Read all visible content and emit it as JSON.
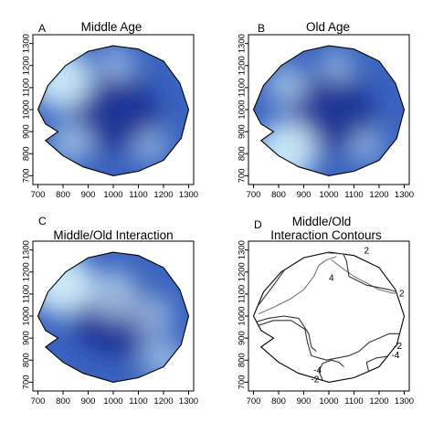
{
  "chart_data": [
    {
      "type": "heatmap",
      "panel": "A",
      "title": "Middle Age",
      "x_ticks": [
        "700",
        "800",
        "900",
        "1000",
        "1100",
        "1200",
        "1300"
      ],
      "y_ticks": [
        "700",
        "800",
        "900",
        "1000",
        "1100",
        "1200",
        "1300"
      ],
      "xlim": [
        680,
        1320
      ],
      "ylim": [
        660,
        1340
      ],
      "grid": false,
      "colors": {
        "low": "#1b2f8f",
        "mid": "#3b64bf",
        "high": "#cfeefa"
      },
      "highlights": [
        {
          "x": 790,
          "y": 1140,
          "intensity": 0.9
        },
        {
          "x": 830,
          "y": 850,
          "intensity": 0.45
        },
        {
          "x": 1010,
          "y": 1210,
          "intensity": 0.35
        },
        {
          "x": 1150,
          "y": 830,
          "intensity": 0.3
        }
      ]
    },
    {
      "type": "heatmap",
      "panel": "B",
      "title": "Old Age",
      "x_ticks": [
        "700",
        "800",
        "900",
        "1000",
        "1100",
        "1200",
        "1300"
      ],
      "y_ticks": [
        "700",
        "800",
        "900",
        "1000",
        "1100",
        "1200",
        "1300"
      ],
      "xlim": [
        680,
        1320
      ],
      "ylim": [
        660,
        1340
      ],
      "grid": false,
      "colors": {
        "low": "#1b2f8f",
        "mid": "#3b64bf",
        "high": "#cfeefa"
      },
      "highlights": [
        {
          "x": 830,
          "y": 810,
          "intensity": 0.9
        },
        {
          "x": 830,
          "y": 1110,
          "intensity": 0.45
        },
        {
          "x": 1030,
          "y": 1200,
          "intensity": 0.3
        },
        {
          "x": 1150,
          "y": 830,
          "intensity": 0.3
        }
      ]
    },
    {
      "type": "heatmap",
      "panel": "C",
      "title": "Middle/Old Interaction",
      "x_ticks": [
        "700",
        "800",
        "900",
        "1000",
        "1100",
        "1200",
        "1300"
      ],
      "y_ticks": [
        "700",
        "800",
        "900",
        "1000",
        "1100",
        "1200",
        "1300"
      ],
      "xlim": [
        680,
        1320
      ],
      "ylim": [
        660,
        1340
      ],
      "grid": false,
      "colors": {
        "low": "#1b2f8f",
        "mid": "#3b64bf",
        "high": "#cfeefa"
      },
      "highlights": [
        {
          "x": 790,
          "y": 1150,
          "intensity": 0.95
        },
        {
          "x": 1000,
          "y": 1100,
          "intensity": 0.6
        },
        {
          "x": 1150,
          "y": 1000,
          "intensity": 0.45
        },
        {
          "x": 1200,
          "y": 800,
          "intensity": 0.45
        }
      ]
    },
    {
      "type": "contour",
      "panel": "D",
      "title": [
        "Middle/Old",
        "Interaction Contours"
      ],
      "x_ticks": [
        "700",
        "800",
        "900",
        "1000",
        "1100",
        "1200",
        "1300"
      ],
      "y_ticks": [
        "700",
        "800",
        "900",
        "1000",
        "1100",
        "1200",
        "1300"
      ],
      "xlim": [
        680,
        1320
      ],
      "ylim": [
        660,
        1340
      ],
      "grid": false,
      "contours": [
        {
          "level": 2,
          "color": "#777777",
          "points": [
            [
              800,
              1310
            ],
            [
              900,
              1300
            ],
            [
              1010,
              1285
            ],
            [
              1100,
              1280
            ],
            [
              1170,
              1270
            ]
          ]
        },
        {
          "level": 4,
          "color": "#777777",
          "points": [
            [
              1010,
              1255
            ],
            [
              1050,
              1220
            ],
            [
              1100,
              1180
            ],
            [
              1150,
              1150
            ],
            [
              1200,
              1120
            ],
            [
              1250,
              1105
            ],
            [
              1300,
              1100
            ]
          ]
        },
        {
          "level": 2,
          "color": "#777777",
          "points": [
            [
              720,
              1010
            ],
            [
              780,
              1040
            ],
            [
              850,
              1080
            ],
            [
              900,
              1120
            ],
            [
              940,
              1180
            ],
            [
              960,
              1230
            ],
            [
              990,
              1255
            ],
            [
              1030,
              1270
            ]
          ]
        },
        {
          "level": 0,
          "color": "#333333",
          "points": [
            [
              720,
              1050
            ],
            [
              780,
              1140
            ],
            [
              830,
              1220
            ],
            [
              880,
              1290
            ],
            [
              950,
              1320
            ],
            [
              1010,
              1320
            ],
            [
              1050,
              1300
            ],
            [
              1070,
              1250
            ],
            [
              1080,
              1180
            ],
            [
              1150,
              1140
            ],
            [
              1240,
              1120
            ],
            [
              1300,
              1100
            ]
          ]
        },
        {
          "level": 0,
          "color": "#333333",
          "points": [
            [
              700,
              950
            ],
            [
              780,
              980
            ],
            [
              850,
              980
            ],
            [
              905,
              940
            ],
            [
              915,
              880
            ],
            [
              930,
              820
            ],
            [
              990,
              800
            ],
            [
              1080,
              820
            ],
            [
              1120,
              840
            ],
            [
              1160,
              880
            ],
            [
              1200,
              900
            ],
            [
              1240,
              920
            ],
            [
              1300,
              920
            ]
          ]
        },
        {
          "level": -2,
          "color": "#333333",
          "points": [
            [
              700,
              970
            ],
            [
              760,
              990
            ],
            [
              820,
              1000
            ],
            [
              880,
              990
            ],
            [
              920,
              920
            ],
            [
              930,
              860
            ],
            [
              950,
              840
            ]
          ]
        },
        {
          "level": -4,
          "color": "#333333",
          "points": [
            [
              975,
              710
            ],
            [
              960,
              750
            ],
            [
              975,
              785
            ],
            [
              1010,
              800
            ],
            [
              1040,
              790
            ],
            [
              1060,
              770
            ]
          ]
        },
        {
          "level": -2,
          "color": "#333333",
          "points": [
            [
              1190,
              700
            ],
            [
              1160,
              740
            ],
            [
              1150,
              790
            ],
            [
              1190,
              810
            ],
            [
              1250,
              820
            ],
            [
              1300,
              830
            ]
          ]
        }
      ],
      "labels": [
        {
          "text": "2",
          "x": 1150,
          "y": 1285
        },
        {
          "text": "4",
          "x": 1010,
          "y": 1160
        },
        {
          "text": "2",
          "x": 1290,
          "y": 1090
        },
        {
          "text": "-2",
          "x": 1275,
          "y": 850
        },
        {
          "text": "-4",
          "x": 1265,
          "y": 810
        },
        {
          "text": "-4",
          "x": 955,
          "y": 740
        },
        {
          "text": "-2",
          "x": 945,
          "y": 700
        }
      ]
    }
  ]
}
